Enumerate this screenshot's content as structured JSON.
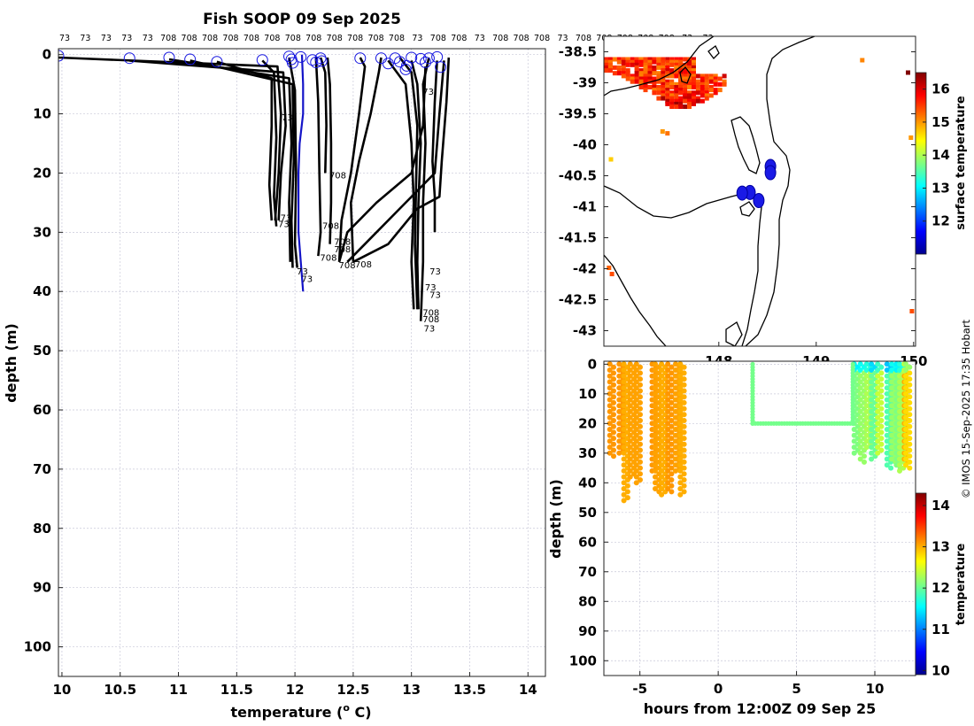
{
  "figure": {
    "title": "Fish SOOP 09 Sep 2025",
    "copyright": "© IMOS 15-Sep-2025 17:35 Hobart"
  },
  "chart_data": [
    {
      "id": "profiles",
      "type": "line",
      "xlabel": "temperature (",
      "xlabel_sup": "o",
      "xlabel_suffix": " C)",
      "ylabel": "depth (m)",
      "xlim": [
        9.97,
        14.15
      ],
      "ylim": [
        105,
        -1
      ],
      "xticks": [
        10,
        10.5,
        11,
        11.5,
        12,
        12.5,
        13,
        13.5,
        14
      ],
      "xtick_labels": [
        "10",
        "10.5",
        "11",
        "11.5",
        "12",
        "12.5",
        "13",
        "13.5",
        "14"
      ],
      "yticks": [
        0,
        10,
        20,
        30,
        40,
        50,
        60,
        70,
        80,
        90,
        100
      ],
      "ytick_labels": [
        "0",
        "10",
        "20",
        "30",
        "40",
        "50",
        "60",
        "70",
        "80",
        "90",
        "100"
      ],
      "top_labels": [
        "73",
        "73",
        "73",
        "73",
        "73",
        "708",
        "708",
        "708",
        "708",
        "708",
        "708",
        "708",
        "708",
        "708",
        "708",
        "708",
        "708",
        "73",
        "708",
        "708",
        "73",
        "708",
        "708",
        "708",
        "73",
        "708",
        "708",
        "708",
        "708",
        "708",
        "73",
        "73"
      ],
      "highlight_series": [
        {
          "name": "latest",
          "color": "#1414c8",
          "points": [
            [
              12.06,
              0
            ],
            [
              12.07,
              5
            ],
            [
              12.07,
              10
            ],
            [
              12.04,
              15
            ],
            [
              12.03,
              20
            ],
            [
              12.03,
              25
            ],
            [
              12.03,
              30
            ],
            [
              12.05,
              35
            ],
            [
              12.07,
              40
            ]
          ]
        }
      ],
      "series": [
        {
          "name": "73-a",
          "points": [
            [
              9.97,
              0.5
            ],
            [
              11.85,
              2
            ],
            [
              11.88,
              10
            ],
            [
              11.86,
              20
            ],
            [
              11.83,
              28
            ]
          ]
        },
        {
          "name": "73-b",
          "points": [
            [
              10.58,
              1
            ],
            [
              11.9,
              3
            ],
            [
              11.92,
              12
            ],
            [
              11.88,
              20
            ],
            [
              11.86,
              28
            ]
          ]
        },
        {
          "name": "708-c",
          "points": [
            [
              10.92,
              0.8
            ],
            [
              11.95,
              4
            ],
            [
              11.97,
              15
            ],
            [
              11.95,
              25
            ],
            [
              11.96,
              35
            ]
          ]
        },
        {
          "name": "708-d",
          "points": [
            [
              11.1,
              1
            ],
            [
              11.98,
              5
            ],
            [
              11.99,
              18
            ],
            [
              11.97,
              28
            ],
            [
              11.98,
              36
            ]
          ]
        },
        {
          "name": "708-e",
          "points": [
            [
              11.33,
              1.2
            ],
            [
              11.8,
              4
            ],
            [
              11.8,
              12
            ],
            [
              11.78,
              22
            ],
            [
              11.8,
              28
            ]
          ]
        },
        {
          "name": "708-f",
          "points": [
            [
              11.72,
              1
            ],
            [
              11.82,
              3
            ],
            [
              11.84,
              14
            ],
            [
              11.82,
              24
            ],
            [
              11.84,
              29
            ]
          ]
        },
        {
          "name": "708-g",
          "points": [
            [
              11.95,
              0.5
            ],
            [
              12.0,
              6
            ],
            [
              12.01,
              20
            ],
            [
              12.0,
              32
            ],
            [
              12.02,
              36
            ]
          ]
        },
        {
          "name": "708-h",
          "points": [
            [
              12.22,
              0.5
            ],
            [
              12.26,
              3
            ],
            [
              12.27,
              12
            ],
            [
              12.26,
              20
            ]
          ]
        },
        {
          "name": "708-i",
          "points": [
            [
              12.28,
              0.5
            ],
            [
              12.3,
              5
            ],
            [
              12.31,
              15
            ],
            [
              12.31,
              25
            ],
            [
              12.3,
              32
            ]
          ]
        },
        {
          "name": "708-j",
          "points": [
            [
              12.18,
              0.5
            ],
            [
              12.2,
              8
            ],
            [
              12.21,
              20
            ],
            [
              12.22,
              30
            ],
            [
              12.2,
              34
            ]
          ]
        },
        {
          "name": "708-k",
          "points": [
            [
              12.56,
              0.5
            ],
            [
              12.6,
              2
            ],
            [
              12.55,
              10
            ],
            [
              12.48,
              20
            ],
            [
              12.4,
              28
            ],
            [
              12.38,
              35
            ]
          ]
        },
        {
          "name": "708-l",
          "points": [
            [
              12.74,
              0.5
            ],
            [
              12.72,
              3
            ],
            [
              12.65,
              10
            ],
            [
              12.55,
              18
            ],
            [
              12.48,
              25
            ],
            [
              12.5,
              35
            ]
          ]
        },
        {
          "name": "73-m",
          "points": [
            [
              12.8,
              1
            ],
            [
              12.95,
              5
            ],
            [
              13.0,
              15
            ],
            [
              13.02,
              25
            ],
            [
              13.0,
              35
            ],
            [
              13.02,
              43
            ]
          ]
        },
        {
          "name": "73-n",
          "points": [
            [
              12.9,
              0.5
            ],
            [
              13.0,
              3
            ],
            [
              13.05,
              12
            ],
            [
              13.04,
              22
            ],
            [
              13.03,
              32
            ],
            [
              13.05,
              43
            ]
          ]
        },
        {
          "name": "708-o",
          "points": [
            [
              13.0,
              1
            ],
            [
              13.05,
              5
            ],
            [
              13.08,
              15
            ],
            [
              13.06,
              25
            ],
            [
              13.05,
              35
            ],
            [
              13.06,
              43
            ]
          ]
        },
        {
          "name": "73-p",
          "points": [
            [
              13.15,
              0.5
            ],
            [
              13.1,
              5
            ],
            [
              13.12,
              15
            ],
            [
              13.1,
              25
            ],
            [
              13.1,
              35
            ],
            [
              13.08,
              45
            ]
          ]
        },
        {
          "name": "73-q",
          "points": [
            [
              13.22,
              1
            ],
            [
              13.2,
              8
            ],
            [
              13.18,
              18
            ],
            [
              13.2,
              24
            ],
            [
              13.2,
              30
            ]
          ]
        },
        {
          "name": "73-r",
          "points": [
            [
              13.32,
              0.5
            ],
            [
              13.3,
              8
            ],
            [
              13.26,
              18
            ],
            [
              13.24,
              24
            ],
            [
              13.05,
              26
            ],
            [
              12.8,
              32
            ],
            [
              12.5,
              35
            ]
          ]
        },
        {
          "name": "708-s",
          "points": [
            [
              13.28,
              1
            ],
            [
              13.24,
              10
            ],
            [
              13.2,
              20
            ],
            [
              12.9,
              26
            ],
            [
              12.6,
              32
            ],
            [
              12.45,
              35
            ]
          ]
        },
        {
          "name": "708-t",
          "points": [
            [
              13.12,
              2
            ],
            [
              13.1,
              12
            ],
            [
              13.0,
              20
            ],
            [
              12.7,
              25
            ],
            [
              12.45,
              30
            ],
            [
              12.38,
              35
            ]
          ]
        }
      ],
      "end_labels": [
        {
          "t": 11.84,
          "d": 28.5,
          "text": "73"
        },
        {
          "t": 11.86,
          "d": 27.5,
          "text": "73"
        },
        {
          "t": 11.87,
          "d": 10.5,
          "text": "73"
        },
        {
          "t": 12.0,
          "d": 36.5,
          "text": "73"
        },
        {
          "t": 12.04,
          "d": 37.8,
          "text": "73"
        },
        {
          "t": 12.28,
          "d": 20.3,
          "text": "708"
        },
        {
          "t": 12.22,
          "d": 28.8,
          "text": "708"
        },
        {
          "t": 12.32,
          "d": 31.5,
          "text": "708"
        },
        {
          "t": 12.32,
          "d": 32.8,
          "text": "708"
        },
        {
          "t": 12.2,
          "d": 34.2,
          "text": "708"
        },
        {
          "t": 12.36,
          "d": 35.5,
          "text": "708"
        },
        {
          "t": 12.5,
          "d": 35.3,
          "text": "708"
        },
        {
          "t": 13.08,
          "d": 6.2,
          "text": "73"
        },
        {
          "t": 13.14,
          "d": 36.5,
          "text": "73"
        },
        {
          "t": 13.1,
          "d": 39.2,
          "text": "73"
        },
        {
          "t": 13.14,
          "d": 40.5,
          "text": "73"
        },
        {
          "t": 13.08,
          "d": 43.5,
          "text": "708"
        },
        {
          "t": 13.08,
          "d": 44.6,
          "text": "708"
        },
        {
          "t": 13.09,
          "d": 46.2,
          "text": "73"
        }
      ],
      "start_markers": [
        [
          9.97,
          0.2
        ],
        [
          10.58,
          0.6
        ],
        [
          10.92,
          0.5
        ],
        [
          11.1,
          0.8
        ],
        [
          11.33,
          1.2
        ],
        [
          11.72,
          0.9
        ],
        [
          11.95,
          0.3
        ],
        [
          11.97,
          0.8
        ],
        [
          11.98,
          1.4
        ],
        [
          12.05,
          0.4
        ],
        [
          12.15,
          0.9
        ],
        [
          12.18,
          1.3
        ],
        [
          12.22,
          0.6
        ],
        [
          12.23,
          1.1
        ],
        [
          12.56,
          0.6
        ],
        [
          12.74,
          0.6
        ],
        [
          12.8,
          1.5
        ],
        [
          12.86,
          0.6
        ],
        [
          12.9,
          1.2
        ],
        [
          12.96,
          1.9
        ],
        [
          13.0,
          0.5
        ],
        [
          13.08,
          0.7
        ],
        [
          13.15,
          0.6
        ],
        [
          13.22,
          0.4
        ],
        [
          13.25,
          2.1
        ],
        [
          13.12,
          1.3
        ],
        [
          12.95,
          2.5
        ]
      ]
    },
    {
      "id": "map",
      "type": "heatmap",
      "xticks": [
        148,
        149,
        150
      ],
      "xtick_labels": [
        "148",
        "149",
        "150"
      ],
      "yticks": [
        -38.5,
        -39,
        -39.5,
        -40,
        -40.5,
        -41,
        -41.5,
        -42,
        -42.5,
        -43
      ],
      "ytick_labels": [
        "-38.5",
        "-39",
        "-39.5",
        "-40",
        "-40.5",
        "-41",
        "-41.5",
        "-42",
        "-42.5",
        "-43"
      ],
      "xlim": [
        146.82,
        150.02
      ],
      "ylim": [
        -43.25,
        -38.25
      ],
      "colorbar": {
        "label": "surface temperature",
        "range": [
          11.0,
          16.5
        ],
        "ticks": [
          "12",
          "13",
          "14",
          "15",
          "16"
        ],
        "tick_values": [
          12,
          13,
          14,
          15,
          16
        ]
      },
      "station_clusters": [
        {
          "lon": 148.53,
          "lat": -40.35
        },
        {
          "lon": 148.53,
          "lat": -40.45
        },
        {
          "lon": 148.32,
          "lat": -40.77
        },
        {
          "lon": 148.24,
          "lat": -40.78
        },
        {
          "lon": 148.41,
          "lat": -40.9
        }
      ]
    },
    {
      "id": "time-depth",
      "type": "scatter",
      "xlabel": "hours from 12:00Z 09 Sep 25",
      "ylabel": "depth (m)",
      "xlim": [
        -7.3,
        12.6
      ],
      "ylim": [
        105,
        -1
      ],
      "xticks": [
        -5,
        0,
        5,
        10
      ],
      "xtick_labels": [
        "-5",
        "0",
        "5",
        "10"
      ],
      "yticks": [
        0,
        10,
        20,
        30,
        40,
        50,
        60,
        70,
        80,
        90,
        100
      ],
      "ytick_labels": [
        "0",
        "10",
        "20",
        "30",
        "40",
        "50",
        "60",
        "70",
        "80",
        "90",
        "100"
      ],
      "colorbar": {
        "label": "temperature",
        "range": [
          9.9,
          14.3
        ],
        "ticks": [
          "10",
          "11",
          "12",
          "13",
          "14"
        ],
        "tick_values": [
          10,
          11,
          12,
          13,
          14
        ]
      },
      "casts": [
        {
          "t": -6.8,
          "maxd": 31,
          "temp": 13.1
        },
        {
          "t": -6.2,
          "maxd": 30,
          "temp": 13.1
        },
        {
          "t": -5.9,
          "maxd": 46,
          "temp": 13.0
        },
        {
          "t": -5.5,
          "maxd": 38,
          "temp": 13.05
        },
        {
          "t": -5.1,
          "maxd": 40,
          "temp": 13.05
        },
        {
          "t": -4.1,
          "maxd": 36,
          "temp": 13.1
        },
        {
          "t": -3.9,
          "maxd": 43,
          "temp": 13.05
        },
        {
          "t": -3.5,
          "maxd": 44,
          "temp": 13.0
        },
        {
          "t": -3.1,
          "maxd": 43,
          "temp": 13.1
        },
        {
          "t": -2.6,
          "maxd": 36,
          "temp": 13.05
        },
        {
          "t": -2.3,
          "maxd": 44,
          "temp": 13.0
        },
        {
          "t": 8.8,
          "maxd": 30,
          "temp": 12.1
        },
        {
          "t": 9.2,
          "maxd": 33,
          "temp": 12.2
        },
        {
          "t": 9.6,
          "maxd": 28,
          "temp": 12.3
        },
        {
          "t": 9.9,
          "maxd": 32,
          "temp": 12.0
        },
        {
          "t": 10.3,
          "maxd": 30,
          "temp": 12.4
        },
        {
          "t": 10.9,
          "maxd": 35,
          "temp": 11.9
        },
        {
          "t": 11.2,
          "maxd": 33,
          "temp": 12.2
        },
        {
          "t": 11.5,
          "maxd": 35,
          "temp": 12.1
        },
        {
          "t": 11.7,
          "maxd": 36,
          "temp": 12.3
        },
        {
          "t": 12.0,
          "maxd": 33,
          "temp": 13.0
        },
        {
          "t": 12.1,
          "maxd": 35,
          "temp": 12.8
        }
      ],
      "path_temp": 12.05,
      "path": [
        [
          2.2,
          0
        ],
        [
          2.2,
          20
        ],
        [
          8.6,
          20
        ],
        [
          8.6,
          0
        ]
      ]
    }
  ]
}
